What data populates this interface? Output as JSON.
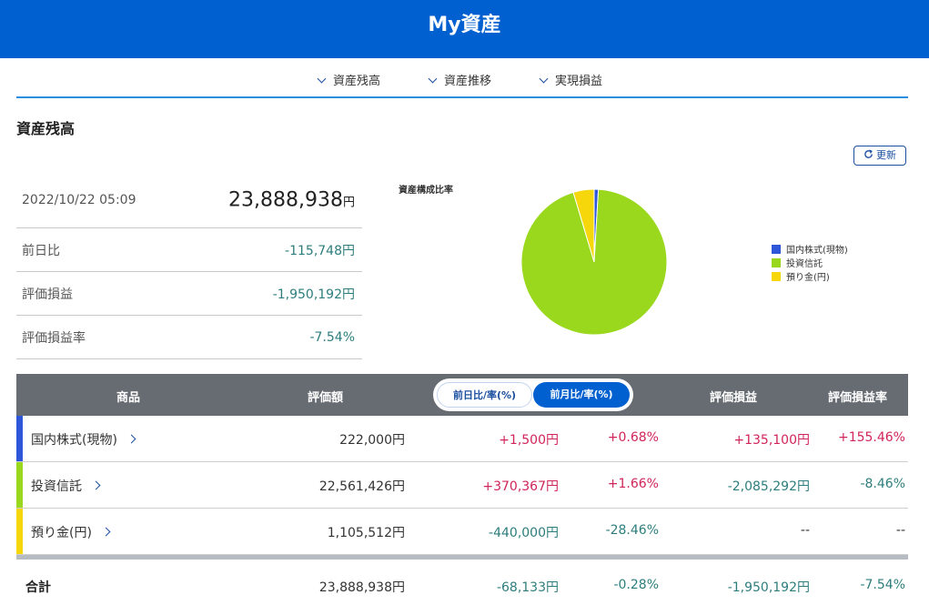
{
  "header": {
    "title": "My資産"
  },
  "subnav": {
    "items": [
      "資産残高",
      "資産推移",
      "実現損益"
    ]
  },
  "section": {
    "title": "資産残高",
    "refresh_label": "更新"
  },
  "summary": {
    "datetime": "2022/10/22 05:09",
    "total_value": "23,888,938",
    "yen": "円",
    "rows": [
      {
        "label": "前日比",
        "value": "-115,748円"
      },
      {
        "label": "評価損益",
        "value": "-1,950,192円"
      },
      {
        "label": "評価損益率",
        "value": "-7.54%"
      }
    ]
  },
  "chart_data": {
    "type": "pie",
    "title": "資産構成比率",
    "categories": [
      "国内株式(現物)",
      "投資信託",
      "預り金(円)"
    ],
    "values": [
      222000,
      22561426,
      1105512
    ],
    "colors": [
      "#2d57d8",
      "#9ad81e",
      "#f5d70b"
    ]
  },
  "table": {
    "headers": {
      "product": "商品",
      "value": "評価額",
      "toggle_day": "前日比/率(%)",
      "toggle_month": "前月比/率(%)",
      "pl": "評価損益",
      "pl_rate": "評価損益率"
    },
    "rows": [
      {
        "name": "国内株式(現物)",
        "color": "#2d57d8",
        "value": "222,000円",
        "change": "+1,500円",
        "change_pct": "+0.68%",
        "pl": "+135,100円",
        "pl_rate": "+155.46%"
      },
      {
        "name": "投資信託",
        "color": "#9ad81e",
        "value": "22,561,426円",
        "change": "+370,367円",
        "change_pct": "+1.66%",
        "pl": "-2,085,292円",
        "pl_rate": "-8.46%"
      },
      {
        "name": "預り金(円)",
        "color": "#f5d70b",
        "value": "1,105,512円",
        "change": "-440,000円",
        "change_pct": "-28.46%",
        "pl": "--",
        "pl_rate": "--"
      }
    ],
    "total": {
      "name": "合計",
      "value": "23,888,938円",
      "change": "-68,133円",
      "change_pct": "-0.28%",
      "pl": "-1,950,192円",
      "pl_rate": "-7.54%"
    }
  }
}
